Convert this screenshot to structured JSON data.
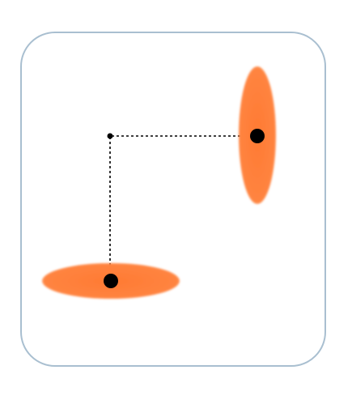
{
  "diagram": {
    "description_free": true,
    "colors": {
      "background": "#ffffff",
      "frame_stroke": "#a9bfd0",
      "ellipse_fill": "#ff7f3f",
      "ellipse_edge": "#ff9a66",
      "dot": "#000000",
      "guide_line": "#000000"
    },
    "elements": {
      "frame": "rounded-rectangle",
      "vertical_ellipse": "ellipse-vertical",
      "horizontal_ellipse": "ellipse-horizontal",
      "corner_dot": "pivot-point",
      "connector": "dashed-l-connector"
    }
  }
}
